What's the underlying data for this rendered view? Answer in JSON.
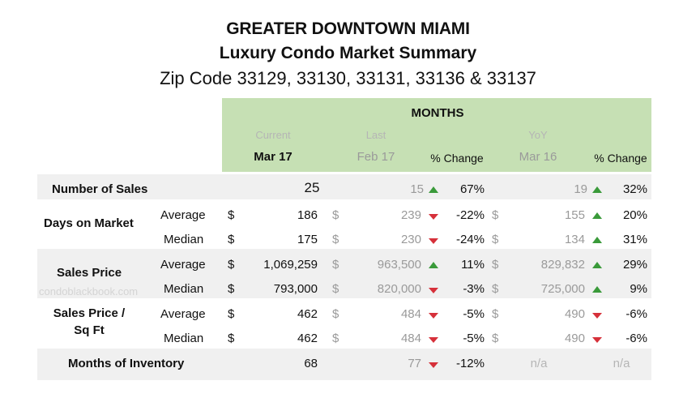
{
  "header": {
    "line1": "GREATER DOWNTOWN MIAMI",
    "line2": "Luxury Condo Market Summary",
    "line3": "Zip Code 33129, 33130, 33131, 33136 & 33137"
  },
  "columns": {
    "group_title": "MONTHS",
    "current_label": "Current",
    "current_period": "Mar 17",
    "last_label": "Last",
    "last_period": "Feb 17",
    "change_label": "% Change",
    "yoy_label": "YoY",
    "yoy_period": "Mar 16",
    "yoy_change_label": "% Change"
  },
  "currency": "$",
  "watermark": "condoblackbook.com",
  "rows": {
    "sales": {
      "label": "Number of Sales",
      "current": "25",
      "last": "15",
      "last_change": "67%",
      "yoy": "19",
      "yoy_change": "32%"
    },
    "dom_label": "Days on Market",
    "dom_avg": {
      "sub": "Average",
      "current": "186",
      "last": "239",
      "last_change": "-22%",
      "yoy": "155",
      "yoy_change": "20%"
    },
    "dom_med": {
      "sub": "Median",
      "current": "175",
      "last": "230",
      "last_change": "-24%",
      "yoy": "134",
      "yoy_change": "31%"
    },
    "price_label": "Sales Price",
    "price_avg": {
      "sub": "Average",
      "current": "1,069,259",
      "last": "963,500",
      "last_change": "11%",
      "yoy": "829,832",
      "yoy_change": "29%"
    },
    "price_med": {
      "sub": "Median",
      "current": "793,000",
      "last": "820,000",
      "last_change": "-3%",
      "yoy": "725,000",
      "yoy_change": "9%"
    },
    "sqft_label_1": "Sales Price /",
    "sqft_label_2": "Sq Ft",
    "sqft_avg": {
      "sub": "Average",
      "current": "462",
      "last": "484",
      "last_change": "-5%",
      "yoy": "490",
      "yoy_change": "-6%"
    },
    "sqft_med": {
      "sub": "Median",
      "current": "462",
      "last": "484",
      "last_change": "-5%",
      "yoy": "490",
      "yoy_change": "-6%"
    },
    "inv": {
      "label": "Months of Inventory",
      "current": "68",
      "last": "77",
      "last_change": "-12%",
      "yoy": "n/a",
      "yoy_change": "n/a"
    }
  },
  "colors": {
    "header_green": "#c6e0b4",
    "band_grey": "#f0f0f0",
    "arrow_up": "#3a9a3a",
    "arrow_down": "#d6303a"
  }
}
